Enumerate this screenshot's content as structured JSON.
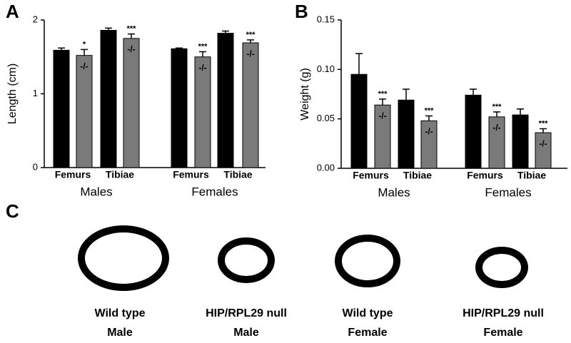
{
  "chart_data": [
    {
      "type": "bar",
      "panel_label": "A",
      "y_label": "Length (cm)",
      "ylim": [
        0,
        2
      ],
      "yticks": [
        0,
        1,
        2
      ],
      "categories": [
        "Femurs",
        "Tibiae",
        "Femurs",
        "Tibiae"
      ],
      "groups": [
        "Males",
        "Females"
      ],
      "series": [
        {
          "color": "#000000",
          "values": [
            1.59,
            1.86,
            1.61,
            1.82
          ],
          "errors": [
            0.03,
            0.03,
            0.01,
            0.03
          ]
        },
        {
          "name": "-/-",
          "color": "#7a7a7a",
          "values": [
            1.52,
            1.75,
            1.5,
            1.69
          ],
          "errors": [
            0.08,
            0.06,
            0.07,
            0.04
          ],
          "annotations": [
            "*",
            "***",
            "***",
            "***"
          ]
        }
      ]
    },
    {
      "type": "bar",
      "panel_label": "B",
      "y_label": "Weight (g)",
      "ylim": [
        0,
        0.15
      ],
      "yticks": [
        {
          "value": 0,
          "label": "0.00"
        },
        {
          "value": 0.05,
          "label": "0.05"
        },
        {
          "value": 0.1,
          "label": "0.10"
        },
        {
          "value": 0.15,
          "label": "0.15"
        }
      ],
      "categories": [
        "Femurs",
        "Tibiae",
        "Femurs",
        "Tibiae"
      ],
      "groups": [
        "Males",
        "Females"
      ],
      "series": [
        {
          "color": "#000000",
          "values": [
            0.095,
            0.069,
            0.074,
            0.054
          ],
          "errors": [
            0.021,
            0.011,
            0.006,
            0.006
          ]
        },
        {
          "name": "-/-",
          "color": "#7a7a7a",
          "values": [
            0.064,
            0.048,
            0.052,
            0.036
          ],
          "errors": [
            0.006,
            0.005,
            0.005,
            0.004
          ],
          "annotations": [
            "***",
            "***",
            "***",
            "***"
          ]
        }
      ]
    }
  ],
  "panel_c": {
    "panel_label": "C",
    "captions": [
      [
        "Wild type",
        "Male"
      ],
      [
        "HIP/RPL29 null",
        "Male"
      ],
      [
        "Wild type",
        "Female"
      ],
      [
        "HIP/RPL29 null",
        "Female"
      ]
    ]
  }
}
